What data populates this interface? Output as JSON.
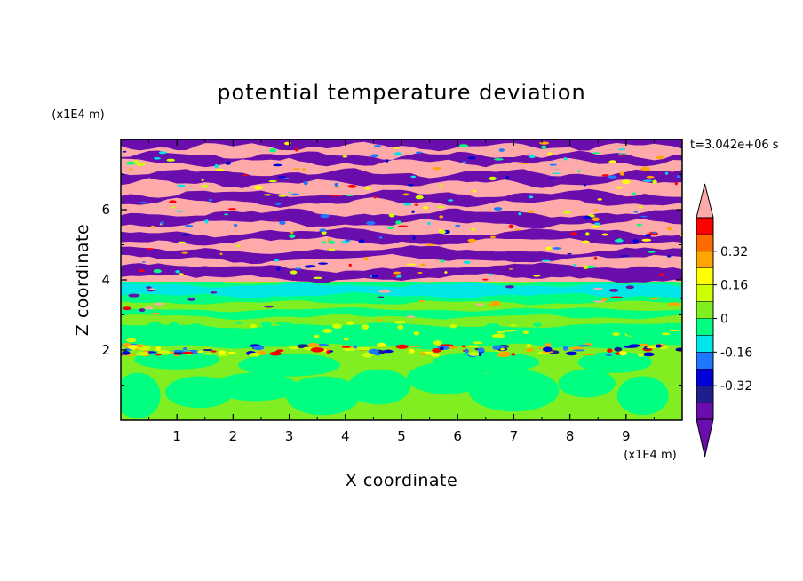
{
  "chart_data": {
    "type": "heatmap",
    "title": "potential temperature deviation",
    "xlabel": "X coordinate",
    "ylabel": "Z coordinate",
    "x_unit": "(x1E4 m)",
    "y_unit": "(x1E4 m)",
    "time_label": "t=3.042e+06 s",
    "xlim": [
      0,
      10
    ],
    "ylim": [
      0,
      8
    ],
    "x_ticks": [
      "1",
      "2",
      "3",
      "4",
      "5",
      "6",
      "7",
      "8",
      "9"
    ],
    "y_ticks": [
      "2",
      "4",
      "6"
    ],
    "colorbar": {
      "levels": [
        -0.48,
        -0.4,
        -0.32,
        -0.24,
        -0.16,
        -0.08,
        0,
        0.08,
        0.16,
        0.24,
        0.32,
        0.4,
        0.48
      ],
      "tick_labels": [
        "0.32",
        "0.16",
        "0",
        "-0.16",
        "-0.32"
      ],
      "tick_values": [
        0.32,
        0.16,
        0,
        -0.16,
        -0.32
      ],
      "colors_low_to_high": [
        "#6a0dad",
        "#1e1e8c",
        "#0000d8",
        "#1e78ff",
        "#00e6e6",
        "#00ff80",
        "#80ee20",
        "#ccff00",
        "#ffff00",
        "#ffa500",
        "#ff6a00",
        "#ff0000",
        "#ffaaaa"
      ],
      "extend": "both"
    },
    "field_description": {
      "z_0_to_2": "near-zero values, alternating green (#80ee20) and light green (#00ff80) blobs",
      "z_2": "thin band of strong anomalies (-0.48 to +0.48)",
      "z_2_to_4": "mostly slightly negative (#00ff80) with cyan band near z=3.7",
      "z_4_to_8": "alternating layers of strongly positive (#ffaaaa) and strongly negative (#6a0dad) values"
    }
  }
}
